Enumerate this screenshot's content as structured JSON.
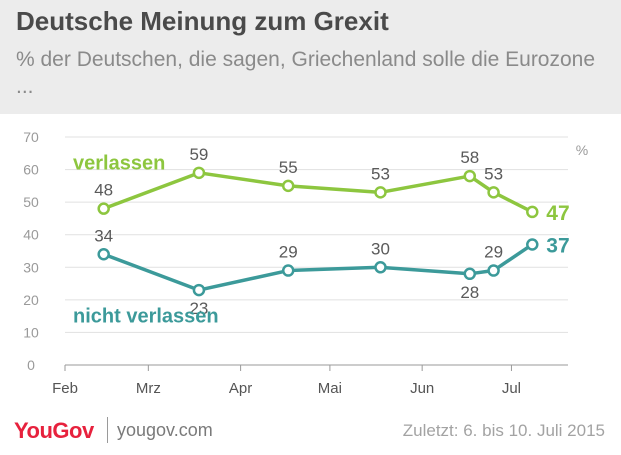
{
  "header": {
    "title": "Deutsche Meinung zum Grexit",
    "subtitle": "% der Deutschen, die sagen, Griechenland solle die Eurozone ..."
  },
  "footer": {
    "brand": "YouGov",
    "url": "yougov.com",
    "date_note": "Zuletzt: 6. bis 10. Juli 2015"
  },
  "colors": {
    "verlassen": "#8dc63f",
    "nicht_verlassen": "#3c9a9a",
    "brand_red": "#e7213d"
  },
  "chart_data": {
    "type": "line",
    "unit": "%",
    "ylim": [
      0,
      70
    ],
    "y_ticks": [
      0,
      10,
      20,
      30,
      40,
      50,
      60,
      70
    ],
    "x_ticks": [
      "Feb",
      "Mrz",
      "Apr",
      "Mai",
      "Jun",
      "Jul"
    ],
    "x_tick_dates": [
      "2015-02-01",
      "2015-03-01",
      "2015-04-01",
      "2015-05-01",
      "2015-06-01",
      "2015-07-01"
    ],
    "x_range": [
      "2015-02-01",
      "2015-07-20"
    ],
    "grid": true,
    "series": [
      {
        "name": "verlassen",
        "color": "#8dc63f",
        "dates": [
          "2015-02-14",
          "2015-03-18",
          "2015-04-17",
          "2015-05-18",
          "2015-06-17",
          "2015-06-25",
          "2015-07-08"
        ],
        "values": [
          48,
          59,
          55,
          53,
          58,
          53,
          47
        ],
        "last_label": "47"
      },
      {
        "name": "nicht verlassen",
        "color": "#3c9a9a",
        "dates": [
          "2015-02-14",
          "2015-03-18",
          "2015-04-17",
          "2015-05-18",
          "2015-06-17",
          "2015-06-25",
          "2015-07-08"
        ],
        "values": [
          34,
          23,
          29,
          30,
          28,
          29,
          37
        ],
        "last_label": "37"
      }
    ]
  }
}
